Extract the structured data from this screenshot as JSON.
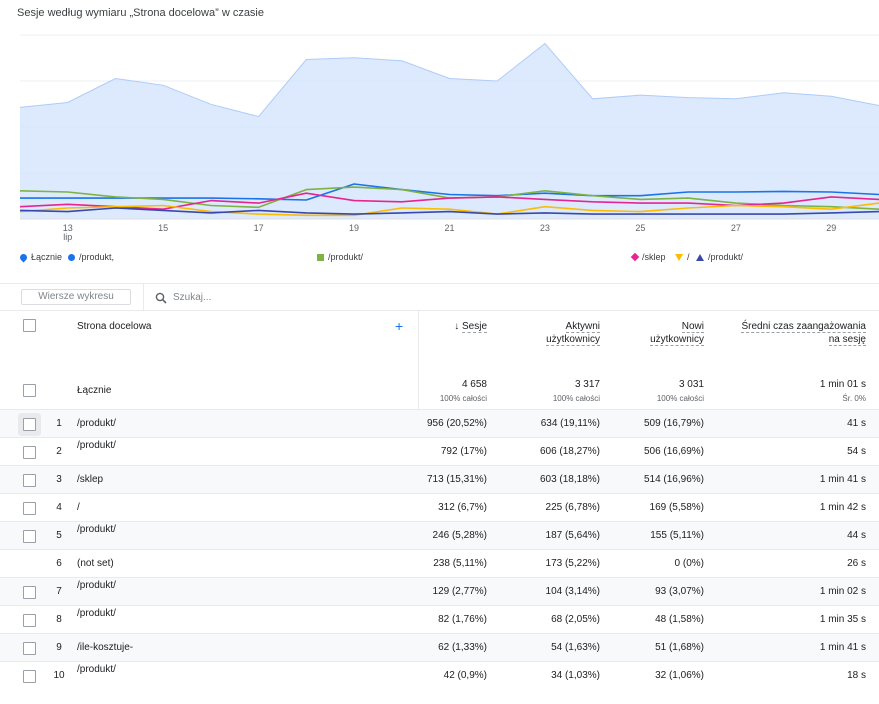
{
  "title": "Sesje według wymiaru „Strona docelowa” w czasie",
  "chart_data": {
    "type": "line",
    "x": [
      12,
      13,
      14,
      15,
      16,
      17,
      18,
      19,
      20,
      21,
      22,
      23,
      24,
      25,
      26,
      27,
      28,
      29,
      30
    ],
    "x_ticks": [
      {
        "x": 13,
        "label": "13",
        "sub": "lip"
      },
      {
        "x": 15,
        "label": "15",
        "sub": ""
      },
      {
        "x": 17,
        "label": "17",
        "sub": ""
      },
      {
        "x": 19,
        "label": "19",
        "sub": ""
      },
      {
        "x": 21,
        "label": "21",
        "sub": ""
      },
      {
        "x": 23,
        "label": "23",
        "sub": ""
      },
      {
        "x": 25,
        "label": "25",
        "sub": ""
      },
      {
        "x": 27,
        "label": "27",
        "sub": ""
      },
      {
        "x": 29,
        "label": "29",
        "sub": ""
      }
    ],
    "ylim": [
      0,
      300
    ],
    "grid": true,
    "series": [
      {
        "name": "Łącznie",
        "type": "area",
        "color": "#d2e3fc",
        "stroke": "#aecbfa",
        "values": [
          182,
          190,
          229,
          218,
          187,
          167,
          260,
          263,
          258,
          229,
          225,
          286,
          196,
          202,
          198,
          196,
          206,
          200,
          185
        ]
      },
      {
        "name": "/produkt/",
        "color": "#1a73e8",
        "values": [
          34,
          34,
          34,
          34,
          34,
          33,
          31,
          57,
          48,
          40,
          38,
          42,
          38,
          38,
          44,
          44,
          45,
          44,
          40
        ]
      },
      {
        "name": "/produkt/",
        "color": "#7cb342",
        "values": [
          46,
          44,
          36,
          32,
          22,
          19,
          48,
          52,
          48,
          34,
          36,
          46,
          38,
          32,
          34,
          26,
          22,
          20,
          16
        ]
      },
      {
        "name": "/sklep",
        "color": "#e52592",
        "values": [
          20,
          24,
          20,
          16,
          30,
          26,
          42,
          30,
          28,
          34,
          36,
          32,
          28,
          26,
          26,
          22,
          26,
          36,
          32
        ]
      },
      {
        "name": "/",
        "color": "#fbbc04",
        "values": [
          12,
          18,
          20,
          22,
          12,
          8,
          6,
          6,
          18,
          16,
          8,
          20,
          14,
          12,
          18,
          22,
          20,
          16,
          26
        ]
      },
      {
        "name": "/produkt/",
        "color": "#3949ab",
        "values": [
          14,
          12,
          18,
          14,
          10,
          14,
          10,
          8,
          10,
          12,
          8,
          10,
          8,
          8,
          8,
          8,
          8,
          10,
          12
        ]
      }
    ]
  },
  "legend": [
    {
      "icon": "pin",
      "color": "#1a73e8",
      "label": "Łącznie"
    },
    {
      "icon": "dot",
      "color": "#1a73e8",
      "label": "/produkt,"
    },
    {
      "icon": "square",
      "color": "#7cb342",
      "label": "/produkt/"
    },
    {
      "icon": "diamond",
      "color": "#e52592",
      "label": "/sklep"
    },
    {
      "icon": "triangle-down",
      "color": "#fbbc04",
      "label": "/"
    },
    {
      "icon": "triangle-up",
      "color": "#3949ab",
      "label": "/produkt/"
    }
  ],
  "toolbar": {
    "rows_button": "Wiersze wykresu",
    "search_placeholder": "Szukaj..."
  },
  "table": {
    "dimension_header": "Strona docelowa",
    "columns": [
      {
        "line1": "Sesje",
        "line2": "",
        "sorted": true
      },
      {
        "line1": "Aktywni",
        "line2": "użytkownicy",
        "sorted": false
      },
      {
        "line1": "Nowi",
        "line2": "użytkownicy",
        "sorted": false
      },
      {
        "line1": "Średni czas zaangażowania",
        "line2": "na sesję",
        "sorted": false
      }
    ],
    "totals": {
      "label": "Łącznie",
      "values": [
        "4 658",
        "3 317",
        "3 031",
        "1 min 01 s"
      ],
      "subs": [
        "100% całości",
        "100% całości",
        "100% całości",
        "Śr. 0%"
      ]
    },
    "rows": [
      {
        "n": "1",
        "page": "/produkt/",
        "values": [
          "956 (20,52%)",
          "634 (19,11%)",
          "509 (16,79%)",
          "41 s"
        ],
        "checkbox": true
      },
      {
        "n": "2",
        "page": "/produkt/",
        "values": [
          "792 (17%)",
          "606 (18,27%)",
          "506 (16,69%)",
          "54 s"
        ],
        "checkbox": true
      },
      {
        "n": "3",
        "page": "/sklep",
        "values": [
          "713 (15,31%)",
          "603 (18,18%)",
          "514 (16,96%)",
          "1 min 41 s"
        ],
        "checkbox": true
      },
      {
        "n": "4",
        "page": "/",
        "values": [
          "312 (6,7%)",
          "225 (6,78%)",
          "169 (5,58%)",
          "1 min 42 s"
        ],
        "checkbox": true
      },
      {
        "n": "5",
        "page": "/produkt/",
        "values": [
          "246 (5,28%)",
          "187 (5,64%)",
          "155 (5,11%)",
          "44 s"
        ],
        "checkbox": true
      },
      {
        "n": "6",
        "page": "(not set)",
        "values": [
          "238 (5,11%)",
          "173 (5,22%)",
          "0 (0%)",
          "26 s"
        ],
        "checkbox": false
      },
      {
        "n": "7",
        "page": "/produkt/",
        "values": [
          "129 (2,77%)",
          "104 (3,14%)",
          "93 (3,07%)",
          "1 min 02 s"
        ],
        "checkbox": true
      },
      {
        "n": "8",
        "page": "/produkt/",
        "values": [
          "82 (1,76%)",
          "68 (2,05%)",
          "48 (1,58%)",
          "1 min 35 s"
        ],
        "checkbox": true
      },
      {
        "n": "9",
        "page": "/ile-kosztuje-",
        "values": [
          "62 (1,33%)",
          "54 (1,63%)",
          "51 (1,68%)",
          "1 min 41 s"
        ],
        "checkbox": true
      },
      {
        "n": "10",
        "page": "/produkt/",
        "values": [
          "42 (0,9%)",
          "34 (1,03%)",
          "32 (1,06%)",
          "18 s"
        ],
        "checkbox": true
      }
    ]
  }
}
